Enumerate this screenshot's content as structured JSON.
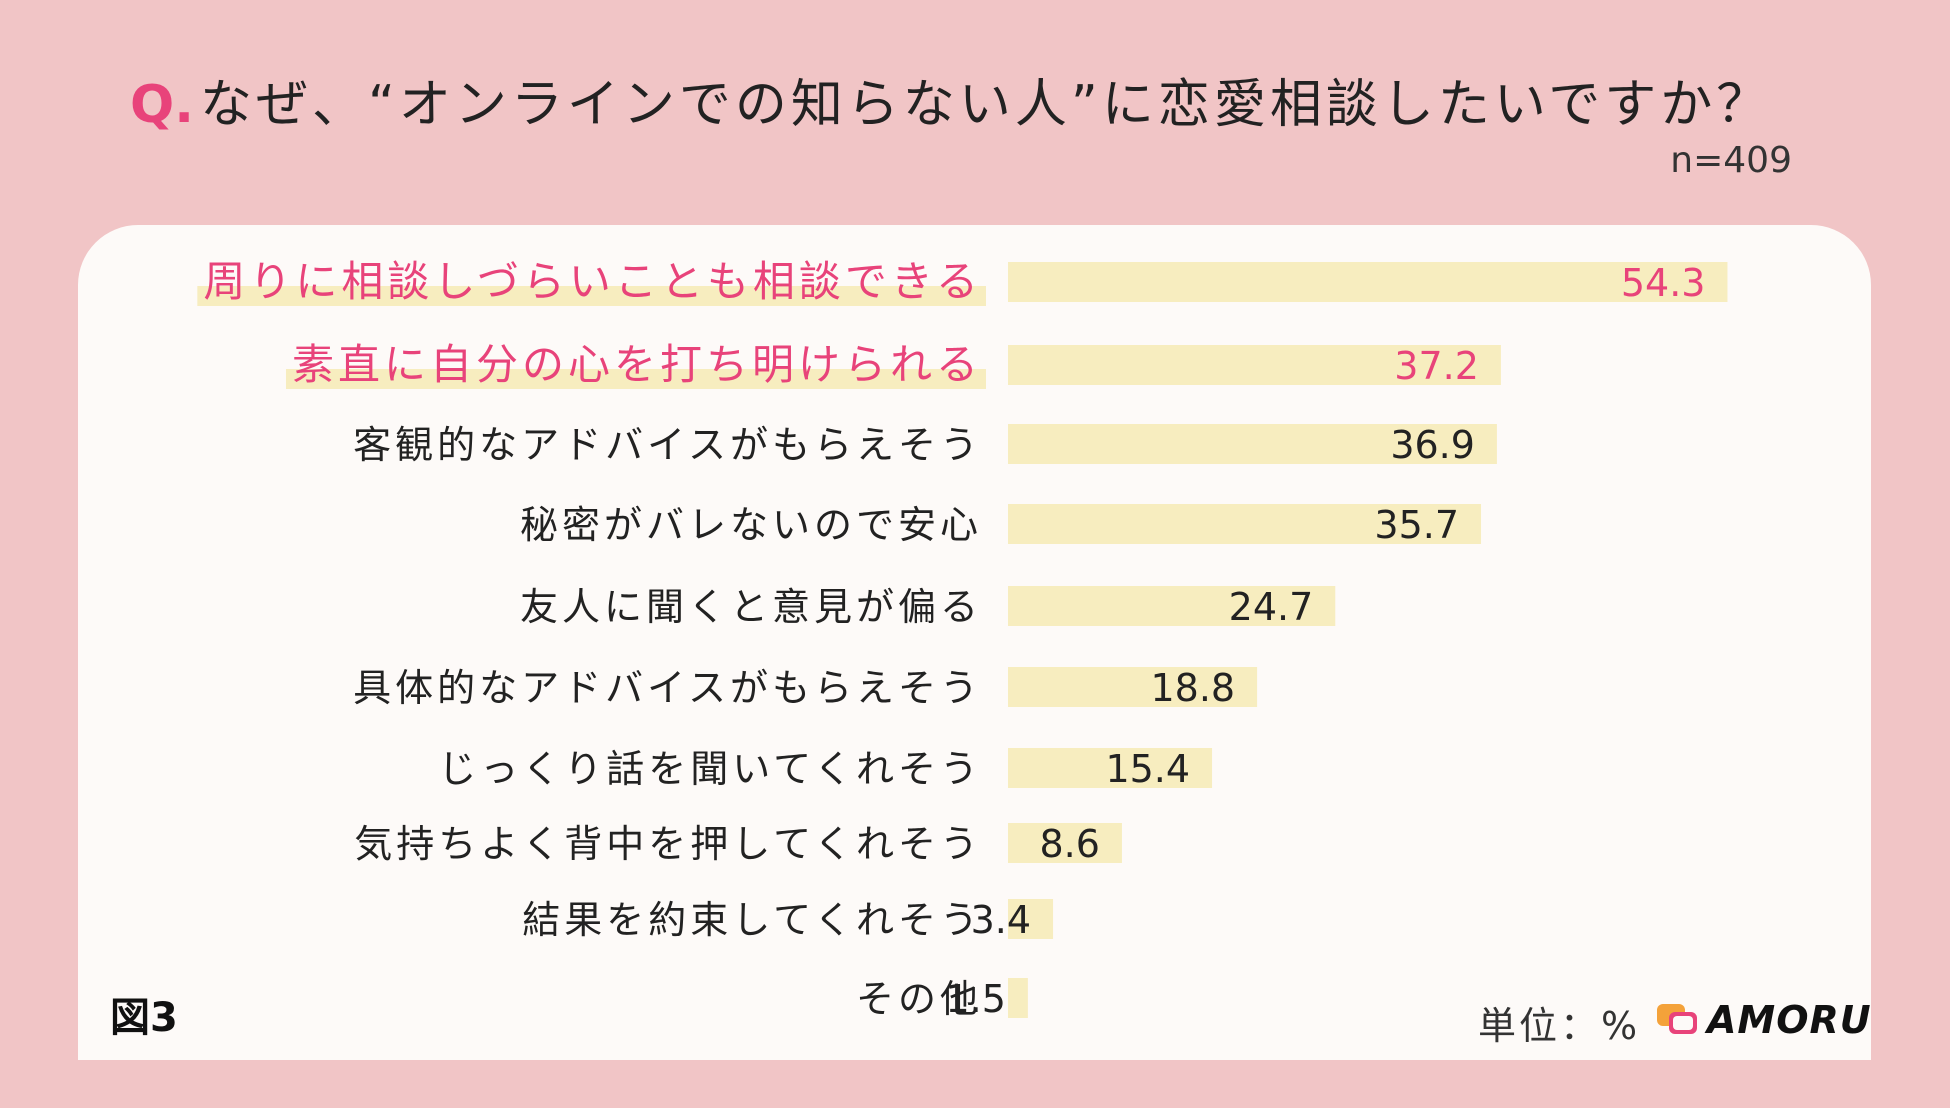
{
  "header": {
    "q_mark": "Q.",
    "question": "なぜ、“オンラインでの知らない人”に恋愛相談したいですか？",
    "sample_size": "n=409"
  },
  "footer": {
    "figure_label": "図3",
    "unit_label": "単位：%",
    "brand": "AMORU"
  },
  "colors": {
    "background": "#f1c5c6",
    "card": "#fdfaf8",
    "bar": "#f7edbf",
    "highlight": "#e8437a",
    "text": "#222222"
  },
  "chart_data": {
    "type": "bar",
    "orientation": "horizontal",
    "categories": [
      "周りに相談しづらいことも相談できる",
      "素直に自分の心を打ち明けられる",
      "客観的なアドバイスがもらえそう",
      "秘密がバレないので安心",
      "友人に聞くと意見が偏る",
      "具体的なアドバイスがもらえそう",
      "じっくり話を聞いてくれそう",
      "気持ちよく背中を押してくれそう",
      "結果を約束してくれそう",
      "その他"
    ],
    "values": [
      54.3,
      37.2,
      36.9,
      35.7,
      24.7,
      18.8,
      15.4,
      8.6,
      3.4,
      1.5
    ],
    "value_labels": [
      "54.3",
      "37.2",
      "36.9",
      "35.7",
      "24.7",
      "18.8",
      "15.4",
      "8.6",
      "3.4",
      "1.5"
    ],
    "highlighted": [
      true,
      true,
      false,
      false,
      false,
      false,
      false,
      false,
      false,
      false
    ],
    "xlim": [
      0,
      100
    ],
    "unit": "%"
  }
}
